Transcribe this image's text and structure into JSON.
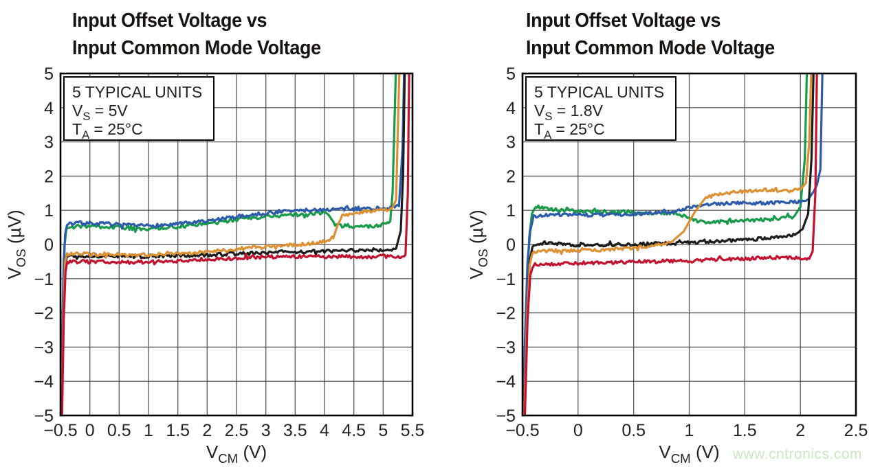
{
  "page": {
    "background": "#ffffff",
    "watermark": {
      "text": "www.cntronics.com",
      "color": "#cde4c6"
    }
  },
  "style": {
    "grid_color": "#4a4a4a",
    "frame_color": "#000000",
    "text_color": "#231f20",
    "annotation_bg": "#ffffff",
    "annotation_border": "#000000"
  },
  "chart_data": [
    {
      "type": "line",
      "title_line1": "Input Offset Voltage vs",
      "title_line2": "Input Common Mode Voltage",
      "annotation_lines": [
        [
          {
            "t": "5 TYPICAL UNITS"
          }
        ],
        [
          {
            "t": "V"
          },
          {
            "t": "S",
            "sub": true
          },
          {
            "t": " = 5V"
          }
        ],
        [
          {
            "t": "T"
          },
          {
            "t": "A",
            "sub": true
          },
          {
            "t": " = 25°C"
          }
        ]
      ],
      "xlabel": [
        {
          "t": "V"
        },
        {
          "t": "CM",
          "sub": true
        },
        {
          "t": " (V)"
        }
      ],
      "ylabel": [
        {
          "t": "V"
        },
        {
          "t": "OS",
          "sub": true
        },
        {
          "t": " (µV)"
        }
      ],
      "xlim": [
        -0.5,
        5.5
      ],
      "ylim": [
        -5,
        5
      ],
      "grid": true,
      "x_grid_step": 0.5,
      "y_grid_step": 1,
      "xticks": {
        "values": [
          -0.5,
          0,
          0.5,
          1,
          1.5,
          2,
          2.5,
          3,
          3.5,
          4,
          4.5,
          5,
          5.5
        ],
        "labels": [
          "−0.5",
          "0",
          "0.5",
          "1",
          "1.5",
          "2",
          "2.5",
          "3",
          "3.5",
          "4",
          "4.5",
          "5",
          "5.5"
        ]
      },
      "yticks": {
        "values": [
          5,
          4,
          3,
          2,
          1,
          0,
          -1,
          -2,
          -3,
          -4,
          -5
        ],
        "labels": [
          "5",
          "4",
          "3",
          "2",
          "1",
          "0",
          "−1",
          "−2",
          "−3",
          "−4",
          "−5"
        ]
      },
      "series": [
        {
          "name": "green",
          "color": "#189a4a",
          "seed": 3,
          "noise": 0.055,
          "anchors": [
            [
              -0.49,
              -5.2
            ],
            [
              -0.46,
              -2.0
            ],
            [
              -0.43,
              0.0
            ],
            [
              -0.4,
              0.45
            ],
            [
              -0.2,
              0.55
            ],
            [
              0.4,
              0.5
            ],
            [
              0.9,
              0.45
            ],
            [
              1.5,
              0.52
            ],
            [
              2.1,
              0.62
            ],
            [
              2.7,
              0.78
            ],
            [
              3.3,
              0.85
            ],
            [
              3.9,
              0.93
            ],
            [
              4.05,
              0.9
            ],
            [
              4.18,
              0.6
            ],
            [
              4.3,
              0.55
            ],
            [
              4.8,
              0.52
            ],
            [
              5.0,
              0.58
            ],
            [
              5.12,
              0.68
            ],
            [
              5.16,
              1.5
            ],
            [
              5.22,
              5.3
            ]
          ]
        },
        {
          "name": "blue",
          "color": "#2d5bac",
          "seed": 7,
          "noise": 0.055,
          "anchors": [
            [
              -0.5,
              -5.2
            ],
            [
              -0.47,
              -2.5
            ],
            [
              -0.445,
              -0.5
            ],
            [
              -0.42,
              0.3
            ],
            [
              -0.39,
              0.58
            ],
            [
              -0.2,
              0.63
            ],
            [
              0.3,
              0.6
            ],
            [
              0.8,
              0.54
            ],
            [
              1.4,
              0.58
            ],
            [
              2.0,
              0.68
            ],
            [
              2.6,
              0.84
            ],
            [
              3.3,
              0.97
            ],
            [
              4.0,
              1.02
            ],
            [
              4.7,
              1.05
            ],
            [
              5.1,
              1.07
            ],
            [
              5.27,
              1.12
            ],
            [
              5.33,
              2.8
            ],
            [
              5.36,
              5.3
            ]
          ]
        },
        {
          "name": "black",
          "color": "#1c1c1c",
          "seed": 13,
          "noise": 0.05,
          "anchors": [
            [
              -0.48,
              -5.2
            ],
            [
              -0.45,
              -2.2
            ],
            [
              -0.42,
              -0.6
            ],
            [
              -0.39,
              -0.33
            ],
            [
              0.0,
              -0.33
            ],
            [
              0.8,
              -0.35
            ],
            [
              1.6,
              -0.33
            ],
            [
              2.4,
              -0.28
            ],
            [
              3.2,
              -0.22
            ],
            [
              4.0,
              -0.2
            ],
            [
              4.6,
              -0.17
            ],
            [
              5.0,
              -0.15
            ],
            [
              5.22,
              -0.12
            ],
            [
              5.3,
              0.4
            ],
            [
              5.34,
              2.0
            ],
            [
              5.37,
              5.3
            ]
          ]
        },
        {
          "name": "orange",
          "color": "#dd9032",
          "seed": 21,
          "noise": 0.055,
          "anchors": [
            [
              -0.48,
              -5.2
            ],
            [
              -0.45,
              -2.0
            ],
            [
              -0.42,
              -0.5
            ],
            [
              -0.39,
              -0.27
            ],
            [
              0.0,
              -0.28
            ],
            [
              0.8,
              -0.3
            ],
            [
              1.6,
              -0.27
            ],
            [
              2.4,
              -0.15
            ],
            [
              3.0,
              -0.05
            ],
            [
              3.6,
              0.0
            ],
            [
              4.0,
              0.08
            ],
            [
              4.15,
              0.18
            ],
            [
              4.22,
              0.55
            ],
            [
              4.3,
              0.83
            ],
            [
              4.6,
              0.95
            ],
            [
              5.0,
              1.0
            ],
            [
              5.15,
              1.05
            ],
            [
              5.22,
              1.3
            ],
            [
              5.28,
              5.3
            ]
          ]
        },
        {
          "name": "red",
          "color": "#c31230",
          "seed": 31,
          "noise": 0.05,
          "anchors": [
            [
              -0.475,
              -5.2
            ],
            [
              -0.445,
              -2.2
            ],
            [
              -0.415,
              -0.8
            ],
            [
              -0.385,
              -0.5
            ],
            [
              0.0,
              -0.5
            ],
            [
              0.7,
              -0.52
            ],
            [
              1.5,
              -0.48
            ],
            [
              2.3,
              -0.42
            ],
            [
              3.0,
              -0.36
            ],
            [
              3.8,
              -0.35
            ],
            [
              4.6,
              -0.36
            ],
            [
              5.1,
              -0.35
            ],
            [
              5.3,
              -0.38
            ],
            [
              5.38,
              -0.3
            ],
            [
              5.42,
              1.5
            ],
            [
              5.445,
              5.3
            ]
          ]
        }
      ]
    },
    {
      "type": "line",
      "title_line1": "Input Offset Voltage vs",
      "title_line2": "Input Common Mode Voltage",
      "annotation_lines": [
        [
          {
            "t": "5 TYPICAL UNITS"
          }
        ],
        [
          {
            "t": "V"
          },
          {
            "t": "S",
            "sub": true
          },
          {
            "t": " = 1.8V"
          }
        ],
        [
          {
            "t": "T"
          },
          {
            "t": "A",
            "sub": true
          },
          {
            "t": " = 25°C"
          }
        ]
      ],
      "xlabel": [
        {
          "t": "V"
        },
        {
          "t": "CM",
          "sub": true
        },
        {
          "t": " (V)"
        }
      ],
      "ylabel": [
        {
          "t": "V"
        },
        {
          "t": "OS",
          "sub": true
        },
        {
          "t": " (µV)"
        }
      ],
      "xlim": [
        -0.5,
        2.5
      ],
      "ylim": [
        -5,
        5
      ],
      "grid": true,
      "x_grid_step": 0.5,
      "y_grid_step": 1,
      "xticks": {
        "values": [
          -0.5,
          0,
          0.5,
          1,
          1.5,
          2,
          2.5
        ],
        "labels": [
          "−0.5",
          "0",
          "0.5",
          "1",
          "1.5",
          "2",
          "2.5"
        ]
      },
      "yticks": {
        "values": [
          5,
          4,
          3,
          2,
          1,
          0,
          -1,
          -2,
          -3,
          -4,
          -5
        ],
        "labels": [
          "5",
          "4",
          "3",
          "2",
          "1",
          "0",
          "−1",
          "−2",
          "−3",
          "−4",
          "−5"
        ]
      },
      "series": [
        {
          "name": "green",
          "color": "#189a4a",
          "seed": 5,
          "noise": 0.055,
          "anchors": [
            [
              -0.49,
              -5.2
            ],
            [
              -0.465,
              -2.0
            ],
            [
              -0.44,
              0.2
            ],
            [
              -0.415,
              0.9
            ],
            [
              -0.38,
              1.12
            ],
            [
              -0.3,
              1.05
            ],
            [
              0.0,
              0.97
            ],
            [
              0.4,
              0.95
            ],
            [
              0.8,
              0.92
            ],
            [
              0.95,
              0.85
            ],
            [
              1.05,
              0.7
            ],
            [
              1.15,
              0.65
            ],
            [
              1.5,
              0.7
            ],
            [
              1.8,
              0.75
            ],
            [
              1.95,
              0.85
            ],
            [
              2.0,
              1.1
            ],
            [
              2.04,
              2.5
            ],
            [
              2.06,
              5.3
            ]
          ]
        },
        {
          "name": "blue",
          "color": "#2d5bac",
          "seed": 9,
          "noise": 0.05,
          "anchors": [
            [
              -0.5,
              -5.2
            ],
            [
              -0.475,
              -2.5
            ],
            [
              -0.455,
              -0.5
            ],
            [
              -0.43,
              0.4
            ],
            [
              -0.4,
              0.82
            ],
            [
              -0.2,
              0.88
            ],
            [
              0.2,
              0.86
            ],
            [
              0.6,
              0.9
            ],
            [
              0.85,
              0.95
            ],
            [
              1.0,
              1.08
            ],
            [
              1.15,
              1.17
            ],
            [
              1.4,
              1.2
            ],
            [
              1.8,
              1.22
            ],
            [
              2.0,
              1.25
            ],
            [
              2.07,
              1.32
            ],
            [
              2.12,
              1.55
            ],
            [
              2.15,
              1.75
            ],
            [
              2.18,
              2.2
            ],
            [
              2.2,
              5.3
            ]
          ]
        },
        {
          "name": "black",
          "color": "#1c1c1c",
          "seed": 17,
          "noise": 0.05,
          "anchors": [
            [
              -0.485,
              -5.2
            ],
            [
              -0.46,
              -2.2
            ],
            [
              -0.435,
              -0.5
            ],
            [
              -0.41,
              -0.05
            ],
            [
              -0.3,
              0.05
            ],
            [
              0.0,
              -0.02
            ],
            [
              0.4,
              0.0
            ],
            [
              0.8,
              0.03
            ],
            [
              1.2,
              0.08
            ],
            [
              1.5,
              0.13
            ],
            [
              1.8,
              0.22
            ],
            [
              1.95,
              0.28
            ],
            [
              2.02,
              0.45
            ],
            [
              2.07,
              0.9
            ],
            [
              2.1,
              2.5
            ],
            [
              2.12,
              5.3
            ]
          ]
        },
        {
          "name": "orange",
          "color": "#dd9032",
          "seed": 23,
          "noise": 0.055,
          "anchors": [
            [
              -0.485,
              -5.2
            ],
            [
              -0.46,
              -2.2
            ],
            [
              -0.435,
              -0.6
            ],
            [
              -0.41,
              -0.22
            ],
            [
              -0.2,
              -0.18
            ],
            [
              0.2,
              -0.15
            ],
            [
              0.5,
              -0.1
            ],
            [
              0.7,
              -0.02
            ],
            [
              0.85,
              0.1
            ],
            [
              0.95,
              0.38
            ],
            [
              1.05,
              0.95
            ],
            [
              1.15,
              1.38
            ],
            [
              1.3,
              1.5
            ],
            [
              1.5,
              1.55
            ],
            [
              1.7,
              1.6
            ],
            [
              1.85,
              1.55
            ],
            [
              2.0,
              1.6
            ],
            [
              2.05,
              1.8
            ],
            [
              2.08,
              3.0
            ],
            [
              2.1,
              5.3
            ]
          ]
        },
        {
          "name": "red",
          "color": "#c31230",
          "seed": 29,
          "noise": 0.05,
          "anchors": [
            [
              -0.48,
              -5.2
            ],
            [
              -0.455,
              -2.2
            ],
            [
              -0.43,
              -0.9
            ],
            [
              -0.4,
              -0.58
            ],
            [
              0.0,
              -0.55
            ],
            [
              0.4,
              -0.52
            ],
            [
              0.9,
              -0.48
            ],
            [
              1.4,
              -0.42
            ],
            [
              1.8,
              -0.38
            ],
            [
              2.0,
              -0.4
            ],
            [
              2.08,
              -0.42
            ],
            [
              2.11,
              -0.2
            ],
            [
              2.135,
              1.5
            ],
            [
              2.15,
              5.3
            ]
          ]
        }
      ]
    }
  ]
}
